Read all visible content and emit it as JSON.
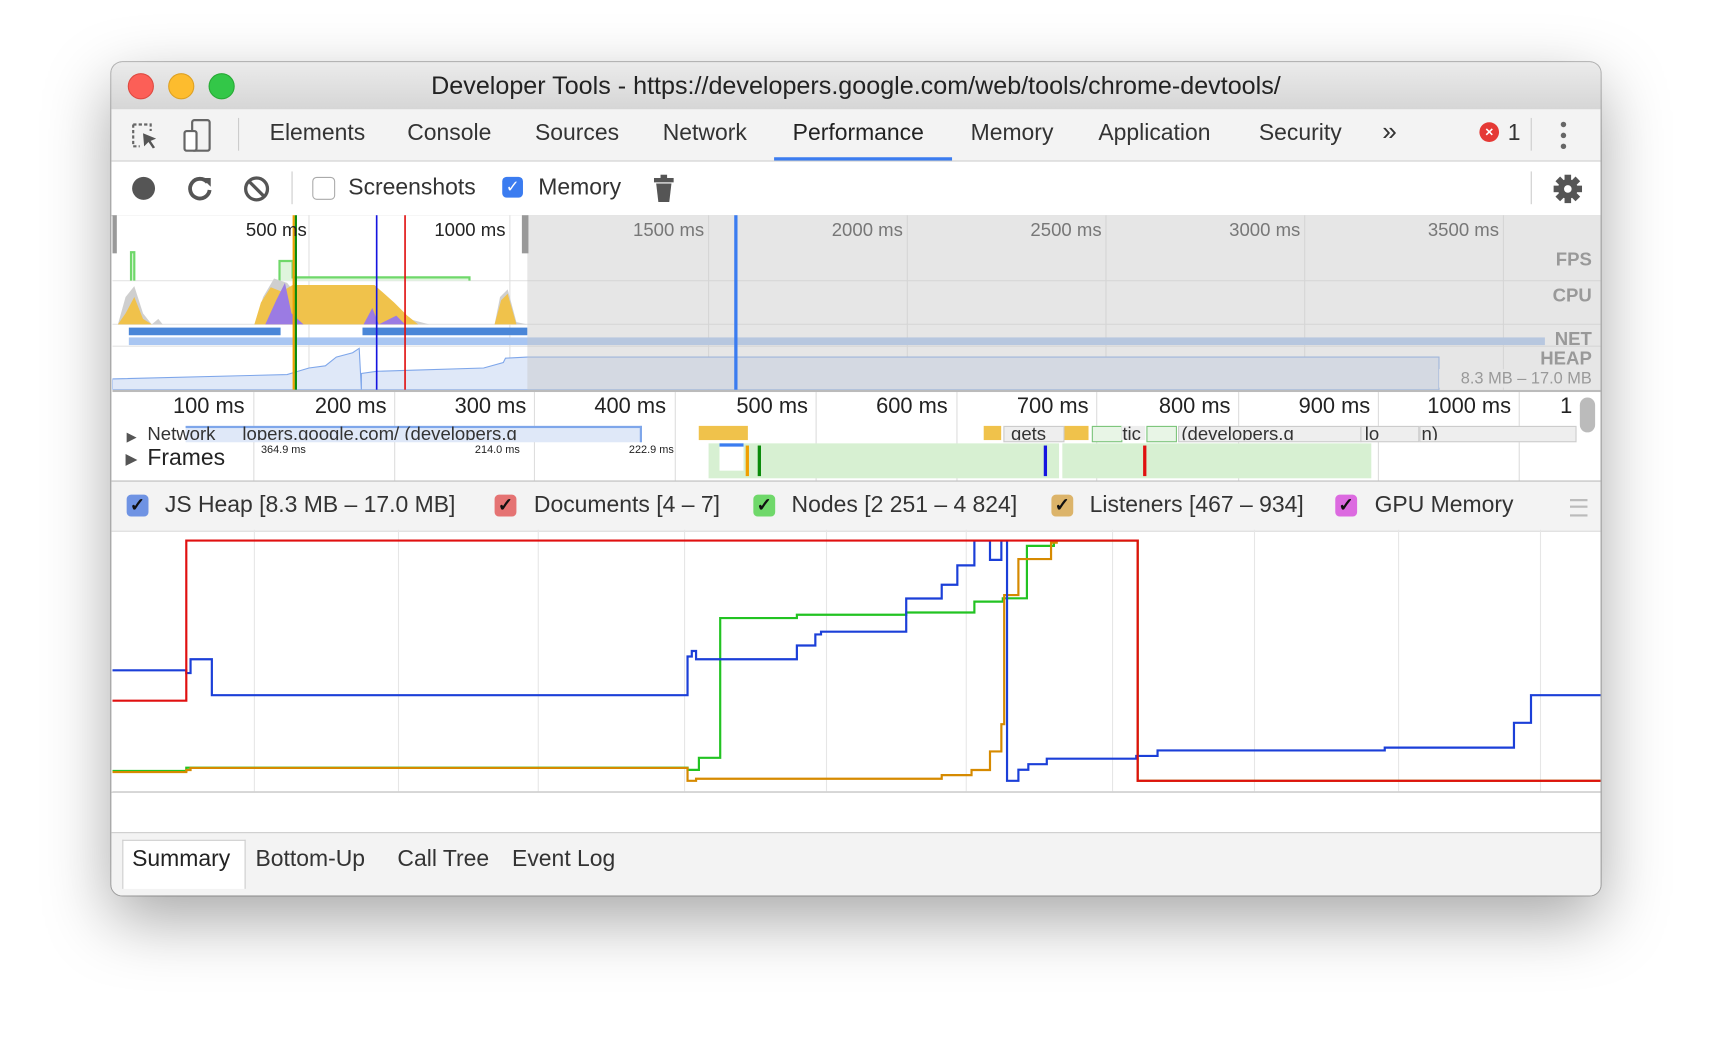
{
  "window": {
    "title": "Developer Tools - https://developers.google.com/web/tools/chrome-devtools/"
  },
  "tabs": [
    {
      "label": "Elements"
    },
    {
      "label": "Console"
    },
    {
      "label": "Sources"
    },
    {
      "label": "Network"
    },
    {
      "label": "Performance",
      "active": true
    },
    {
      "label": "Memory"
    },
    {
      "label": "Application"
    },
    {
      "label": "Security"
    }
  ],
  "tabbar": {
    "more_label": "»",
    "error_count": "1"
  },
  "toolbar": {
    "screenshots_label": "Screenshots",
    "screenshots_checked": false,
    "memory_label": "Memory",
    "memory_checked": true
  },
  "overview": {
    "ticks": [
      "500 ms",
      "1000 ms",
      "1500 ms",
      "2000 ms",
      "2500 ms",
      "3000 ms",
      "3500 ms"
    ],
    "tracks": {
      "fps": "FPS",
      "cpu": "CPU",
      "net": "NET",
      "heap": "HEAP"
    },
    "heap_range": "8.3 MB – 17.0 MB"
  },
  "timeline": {
    "ticks": [
      "100 ms",
      "200 ms",
      "300 ms",
      "400 ms",
      "500 ms",
      "600 ms",
      "700 ms",
      "800 ms",
      "900 ms",
      "1000 ms",
      "1"
    ],
    "network_label": "Network",
    "network_requests": [
      "lopers.google.com/ (developers.g",
      "gets",
      "tic",
      "(developers.g",
      "lo",
      "n)"
    ],
    "frames_label": "Frames",
    "frame_durations": [
      "364.9 ms",
      "214.0 ms",
      "222.9 ms"
    ]
  },
  "legend": [
    {
      "label": "JS Heap [8.3 MB – 17.0 MB]",
      "color": "#6f93e3",
      "checked": true
    },
    {
      "label": "Documents [4 – 7]",
      "color": "#e57373",
      "checked": true
    },
    {
      "label": "Nodes [2 251 – 4 824]",
      "color": "#6fd86a",
      "checked": true
    },
    {
      "label": "Listeners [467 – 934]",
      "color": "#dcb46a",
      "checked": true
    },
    {
      "label": "GPU Memory",
      "color": "#dc6ae0",
      "checked": true
    }
  ],
  "chart_data": {
    "type": "line",
    "step": true,
    "xlabel": "",
    "ylabel": "",
    "xlim": [
      0,
      1048
    ],
    "series": [
      {
        "name": "JS Heap",
        "color": "#1b3fd8",
        "range": [
          8.3,
          17.0
        ],
        "points": [
          [
            0,
            12.3
          ],
          [
            52,
            12.2
          ],
          [
            55,
            12.7
          ],
          [
            70,
            11.4
          ],
          [
            405,
            12.8
          ],
          [
            408,
            13.0
          ],
          [
            411,
            12.7
          ],
          [
            482,
            13.2
          ],
          [
            495,
            13.6
          ],
          [
            499,
            13.7
          ],
          [
            559,
            14.9
          ],
          [
            584,
            15.4
          ],
          [
            595,
            16.1
          ],
          [
            607,
            17.0
          ],
          [
            618,
            16.3
          ],
          [
            626,
            17.0
          ],
          [
            630,
            8.3
          ],
          [
            638,
            8.7
          ],
          [
            645,
            8.9
          ],
          [
            658,
            9.1
          ],
          [
            704,
            9.1
          ],
          [
            721,
            9.2
          ],
          [
            736,
            9.4
          ],
          [
            896,
            9.5
          ],
          [
            987,
            10.4
          ],
          [
            999,
            11.4
          ]
        ]
      },
      {
        "name": "Documents",
        "color": "#e01010",
        "range": [
          4,
          7
        ],
        "points": [
          [
            0,
            5
          ],
          [
            52,
            7
          ],
          [
            722,
            4
          ]
        ]
      },
      {
        "name": "Nodes",
        "color": "#22c322",
        "range": [
          2251,
          4824
        ],
        "points": [
          [
            0,
            2356
          ],
          [
            52,
            2391
          ],
          [
            405,
            2368
          ],
          [
            413,
            2497
          ],
          [
            428,
            3994
          ],
          [
            482,
            4029
          ],
          [
            559,
            4053
          ],
          [
            607,
            4170
          ],
          [
            627,
            4205
          ],
          [
            644,
            4767
          ],
          [
            663,
            4824
          ],
          [
            722,
            2251
          ]
        ]
      },
      {
        "name": "Listeners",
        "color": "#d68a00",
        "range": [
          467,
          934
        ],
        "points": [
          [
            0,
            484
          ],
          [
            52,
            488
          ],
          [
            55,
            492
          ],
          [
            405,
            467
          ],
          [
            411,
            471
          ],
          [
            584,
            478
          ],
          [
            605,
            488
          ],
          [
            618,
            524
          ],
          [
            626,
            577
          ],
          [
            628,
            828
          ],
          [
            638,
            898
          ],
          [
            661,
            930
          ],
          [
            665,
            934
          ],
          [
            722,
            467
          ]
        ]
      }
    ]
  },
  "bottom_tabs": [
    {
      "label": "Summary",
      "active": true
    },
    {
      "label": "Bottom-Up"
    },
    {
      "label": "Call Tree"
    },
    {
      "label": "Event Log"
    }
  ]
}
